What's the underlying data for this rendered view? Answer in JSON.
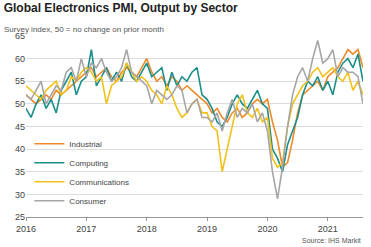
{
  "chart_data": {
    "type": "line",
    "title": "Global Electronics PMI, Output by Sector",
    "subtitle": "Survey index, 50 = no change on prior month",
    "annotations": [
      "Source: IHS Markit"
    ],
    "categories": [
      "2016",
      null,
      null,
      null,
      null,
      null,
      null,
      null,
      null,
      null,
      null,
      null,
      "2017",
      null,
      null,
      null,
      null,
      null,
      null,
      null,
      null,
      null,
      null,
      null,
      "2018",
      null,
      null,
      null,
      null,
      null,
      null,
      null,
      null,
      null,
      null,
      null,
      "2019",
      null,
      null,
      null,
      null,
      null,
      null,
      null,
      null,
      null,
      null,
      null,
      "2020",
      null,
      null,
      null,
      null,
      null,
      null,
      null,
      null,
      null,
      null,
      null,
      "2021",
      null,
      null,
      null,
      null,
      null,
      null,
      null
    ],
    "series": [
      {
        "name": "Industrial",
        "color": "#ef8a2a",
        "values": [
          52,
          51,
          50,
          51,
          52,
          51,
          53,
          52,
          53,
          54,
          55,
          56,
          57,
          58,
          56,
          57,
          58,
          56,
          55,
          57,
          58,
          57,
          56,
          58,
          60,
          57,
          55,
          56,
          54,
          56,
          55,
          53,
          54,
          53,
          52,
          51,
          50,
          48,
          49,
          47,
          46,
          48,
          49,
          47,
          48,
          50,
          51,
          50,
          51,
          46,
          42,
          36,
          37,
          42,
          48,
          52,
          53,
          54,
          55,
          53,
          56,
          57,
          58,
          60,
          62,
          61,
          62,
          58
        ]
      },
      {
        "name": "Computing",
        "color": "#1b8f8a",
        "values": [
          49,
          47,
          50,
          52,
          49,
          51,
          48,
          53,
          55,
          57,
          52,
          55,
          56,
          62,
          54,
          56,
          58,
          55,
          57,
          55,
          59,
          56,
          55,
          57,
          59,
          56,
          57,
          58,
          53,
          57,
          54,
          56,
          55,
          57,
          58,
          52,
          51,
          49,
          46,
          45,
          47,
          50,
          52,
          50,
          49,
          51,
          53,
          50,
          49,
          40,
          38,
          35,
          41,
          44,
          47,
          52,
          55,
          54,
          56,
          53,
          55,
          52,
          57,
          59,
          60,
          58,
          61,
          55
        ]
      },
      {
        "name": "Communications",
        "color": "#f2c21b",
        "values": [
          54,
          53,
          52,
          51,
          53,
          54,
          55,
          52,
          53,
          56,
          55,
          57,
          58,
          57,
          55,
          56,
          50,
          54,
          55,
          56,
          59,
          57,
          55,
          56,
          55,
          53,
          52,
          50,
          54,
          52,
          49,
          47,
          48,
          50,
          51,
          48,
          48,
          45,
          44,
          35,
          40,
          45,
          50,
          52,
          48,
          47,
          49,
          46,
          47,
          38,
          36,
          37,
          45,
          50,
          52,
          54,
          55,
          57,
          58,
          56,
          57,
          58,
          56,
          55,
          57,
          53,
          55,
          52
        ]
      },
      {
        "name": "Consumer",
        "color": "#a6a6a6",
        "values": [
          52,
          51,
          53,
          55,
          50,
          52,
          54,
          53,
          57,
          58,
          55,
          60,
          56,
          59,
          58,
          60,
          57,
          55,
          56,
          58,
          62,
          57,
          56,
          55,
          54,
          50,
          53,
          52,
          51,
          52,
          54,
          53,
          48,
          50,
          51,
          47,
          47,
          46,
          48,
          44,
          48,
          51,
          47,
          49,
          48,
          50,
          46,
          48,
          44,
          35,
          29,
          36,
          45,
          52,
          56,
          58,
          55,
          60,
          64,
          59,
          60,
          62,
          56,
          58,
          57,
          57,
          56,
          50
        ]
      }
    ],
    "ylim": [
      25,
      65
    ],
    "yticks": [
      25,
      30,
      35,
      40,
      45,
      50,
      55,
      60,
      65
    ],
    "grid": true,
    "legend": "bottom left"
  }
}
